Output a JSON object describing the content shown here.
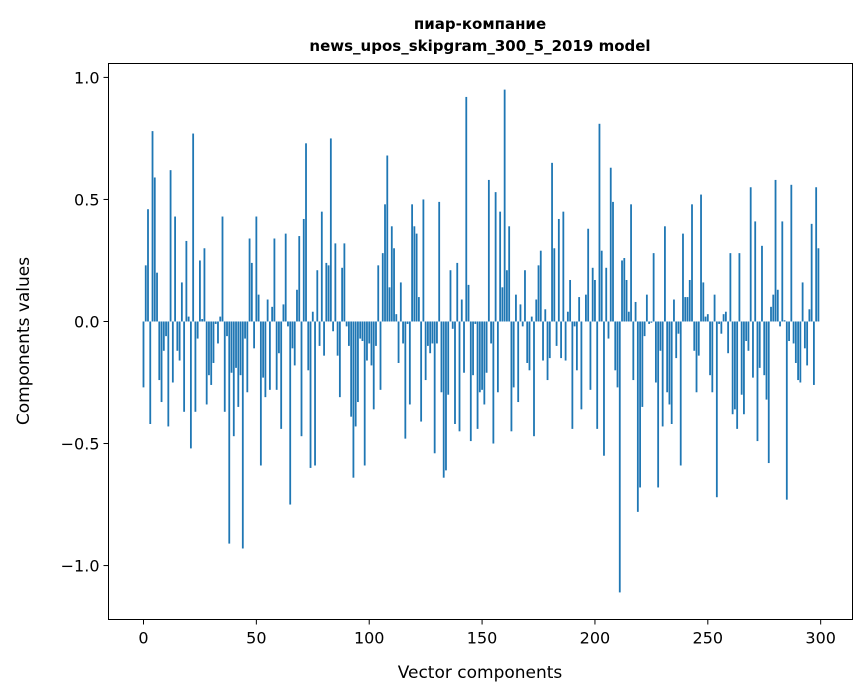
{
  "chart_data": {
    "type": "bar",
    "title": [
      "пиар-компание",
      "news_upos_skipgram_300_5_2019 model"
    ],
    "xlabel": "Vector components",
    "ylabel": "Components values",
    "xlim": [
      -15.5,
      314.1
    ],
    "ylim": [
      -1.221,
      1.057
    ],
    "xticks": [
      0,
      50,
      100,
      150,
      200,
      250,
      300
    ],
    "xtick_labels": [
      "0",
      "50",
      "100",
      "150",
      "200",
      "250",
      "300"
    ],
    "yticks": [
      1.0,
      0.5,
      0.0,
      -0.5,
      -1.0
    ],
    "ytick_labels": [
      "1.0",
      "0.5",
      "0.0",
      "−0.5",
      "−1.0"
    ],
    "grid": false,
    "bar_color": "#1f77b4",
    "bar_width": 0.8,
    "values": [
      -0.27,
      0.23,
      0.46,
      -0.42,
      0.78,
      0.59,
      0.2,
      -0.24,
      -0.33,
      -0.12,
      -0.06,
      -0.43,
      0.62,
      -0.25,
      0.43,
      -0.12,
      -0.16,
      0.16,
      -0.37,
      0.33,
      0.02,
      -0.52,
      0.77,
      -0.37,
      -0.07,
      0.25,
      0.01,
      0.3,
      -0.34,
      -0.22,
      -0.26,
      -0.17,
      -0.01,
      -0.09,
      0.02,
      0.43,
      -0.37,
      -0.06,
      -0.91,
      -0.21,
      -0.47,
      -0.19,
      -0.35,
      -0.22,
      -0.93,
      -0.07,
      -0.29,
      0.34,
      0.24,
      -0.11,
      0.43,
      0.11,
      -0.59,
      -0.23,
      -0.31,
      0.09,
      -0.28,
      0.06,
      0.34,
      -0.28,
      -0.13,
      -0.44,
      0.07,
      0.36,
      -0.02,
      -0.75,
      -0.11,
      -0.18,
      0.13,
      0.35,
      -0.47,
      0.42,
      0.73,
      -0.2,
      -0.6,
      0.04,
      -0.59,
      0.21,
      -0.1,
      0.45,
      -0.14,
      0.24,
      0.23,
      0.75,
      -0.04,
      0.32,
      -0.14,
      -0.31,
      0.22,
      0.32,
      -0.02,
      -0.1,
      -0.39,
      -0.64,
      -0.43,
      -0.33,
      -0.07,
      -0.08,
      -0.59,
      -0.16,
      -0.09,
      -0.18,
      -0.36,
      -0.1,
      0.23,
      -0.28,
      0.28,
      0.48,
      0.68,
      0.14,
      0.39,
      0.3,
      0.03,
      -0.17,
      0.16,
      -0.09,
      -0.48,
      -0.01,
      -0.34,
      0.48,
      0.39,
      0.36,
      0.1,
      -0.41,
      0.5,
      -0.24,
      -0.1,
      -0.13,
      -0.09,
      -0.54,
      -0.09,
      0.49,
      -0.29,
      -0.64,
      -0.61,
      -0.3,
      0.21,
      -0.03,
      -0.42,
      0.24,
      -0.45,
      0.09,
      -0.21,
      0.92,
      0.15,
      -0.49,
      -0.22,
      -0.01,
      -0.44,
      -0.29,
      -0.28,
      -0.34,
      -0.21,
      0.58,
      -0.09,
      -0.5,
      0.53,
      -0.29,
      0.45,
      0.14,
      0.95,
      0.21,
      0.39,
      -0.45,
      -0.27,
      0.11,
      -0.33,
      0.07,
      -0.02,
      0.21,
      -0.17,
      -0.2,
      0.02,
      -0.47,
      0.09,
      0.23,
      0.29,
      -0.16,
      0.05,
      -0.24,
      -0.15,
      0.65,
      0.3,
      -0.1,
      0.42,
      -0.15,
      0.45,
      -0.16,
      0.04,
      0.17,
      -0.44,
      -0.02,
      -0.2,
      0.1,
      -0.36,
      0.0,
      0.11,
      0.38,
      -0.28,
      0.22,
      0.17,
      -0.44,
      0.81,
      0.29,
      -0.55,
      0.22,
      -0.07,
      0.63,
      0.49,
      -0.2,
      -0.27,
      -1.11,
      0.25,
      0.26,
      0.17,
      0.04,
      0.48,
      -0.24,
      0.08,
      -0.78,
      -0.68,
      -0.35,
      -0.06,
      0.11,
      -0.01,
      -0.005,
      0.28,
      -0.25,
      -0.68,
      -0.12,
      -0.43,
      0.39,
      -0.29,
      -0.34,
      -0.42,
      0.09,
      -0.15,
      -0.05,
      -0.59,
      0.36,
      0.1,
      0.1,
      0.17,
      0.48,
      -0.12,
      -0.29,
      -0.14,
      0.52,
      0.16,
      0.02,
      0.03,
      -0.22,
      -0.29,
      0.11,
      -0.72,
      -0.01,
      -0.05,
      0.03,
      0.04,
      -0.13,
      0.28,
      -0.38,
      -0.36,
      -0.44,
      0.28,
      -0.3,
      -0.38,
      -0.08,
      -0.12,
      0.55,
      -0.23,
      0.41,
      -0.49,
      -0.19,
      0.31,
      -0.22,
      -0.32,
      -0.58,
      0.06,
      0.11,
      0.58,
      0.13,
      -0.02,
      0.41,
      0.005,
      -0.73,
      -0.08,
      0.56,
      -0.09,
      -0.17,
      -0.24,
      -0.25,
      0.16,
      -0.11,
      -0.18,
      0.05,
      0.4,
      -0.26,
      0.55,
      0.3
    ]
  }
}
